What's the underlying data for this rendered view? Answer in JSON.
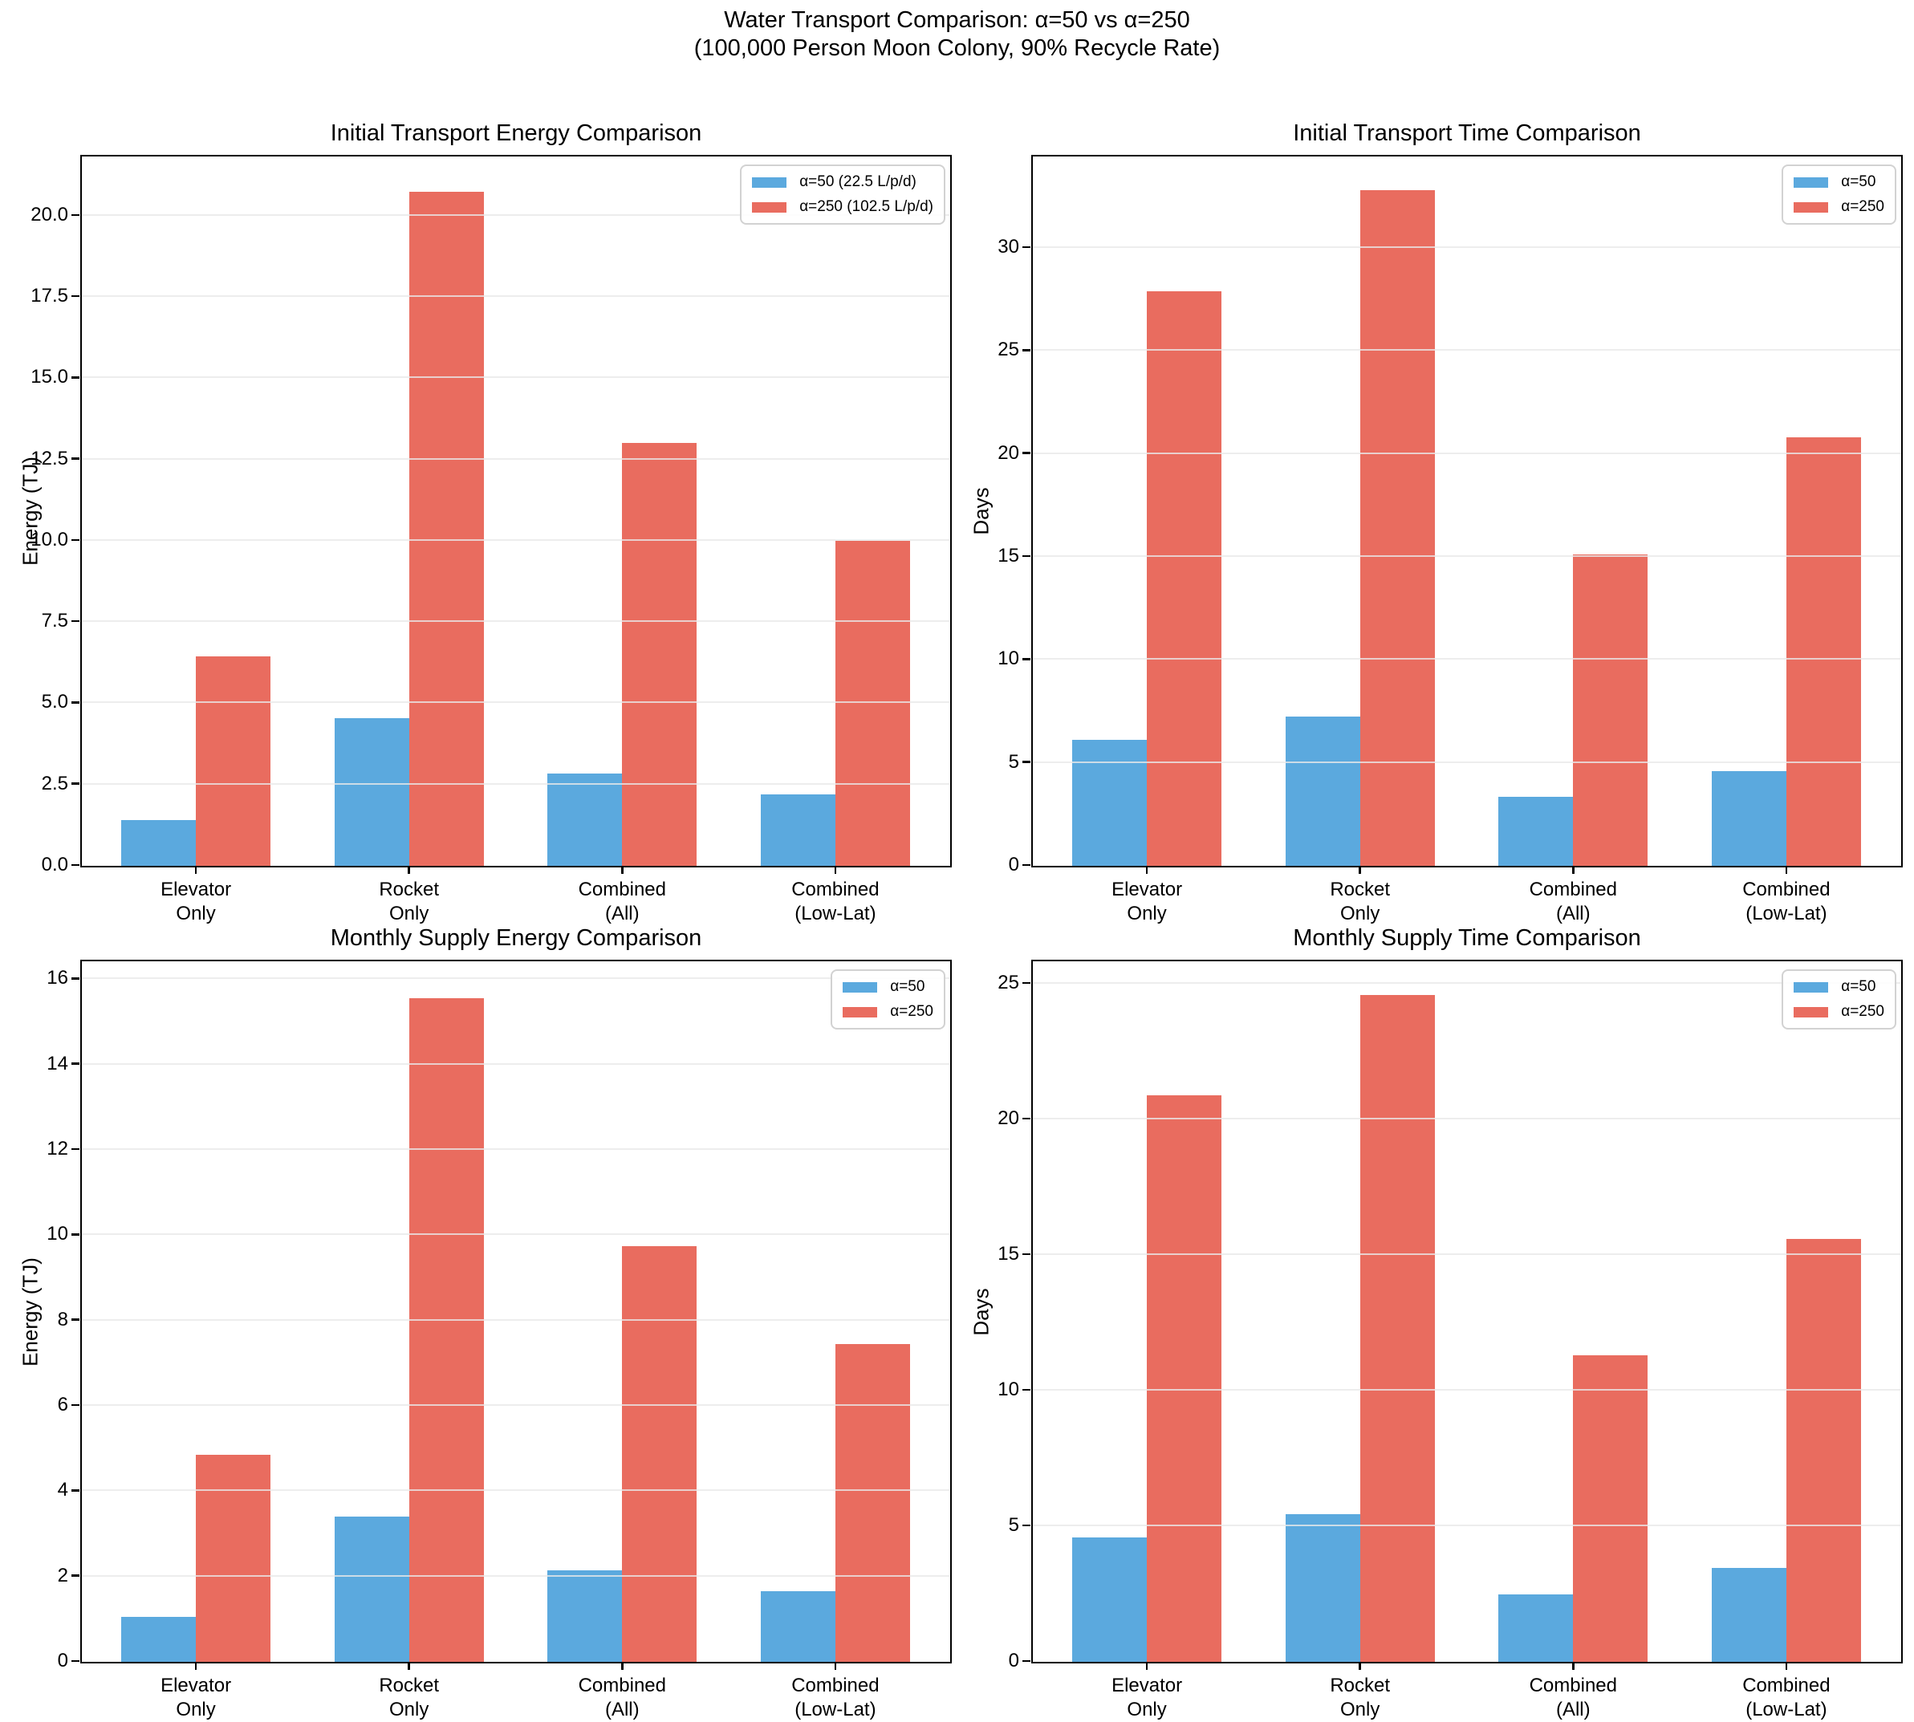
{
  "suptitle": {
    "line1": "Water Transport Comparison: α=50 vs α=250",
    "line2": "(100,000 Person Moon Colony, 90% Recycle Rate)"
  },
  "colors": {
    "alpha50": "#5BA9DE",
    "alpha250": "#E96C5F",
    "grid": "#E8E8E8",
    "spine": "#000000"
  },
  "chart_data": [
    {
      "id": "initial-transport-energy",
      "type": "bar",
      "title": "Initial Transport Energy Comparison",
      "xlabel": "",
      "ylabel": "Energy (TJ)",
      "categories": [
        "Elevator\nOnly",
        "Rocket\nOnly",
        "Combined\n(All)",
        "Combined\n(Low-Lat)"
      ],
      "series": [
        {
          "name": "α=50 (22.5 L/p/d)",
          "color": "#5BA9DE",
          "values": [
            1.4,
            4.55,
            2.85,
            2.2
          ]
        },
        {
          "name": "α=250 (102.5 L/p/d)",
          "color": "#E96C5F",
          "values": [
            6.45,
            20.75,
            13.0,
            10.0
          ]
        }
      ],
      "ylim": [
        0,
        21.8
      ],
      "yticks": [
        0.0,
        2.5,
        5.0,
        7.5,
        10.0,
        12.5,
        15.0,
        17.5,
        20.0
      ],
      "ytick_labels": [
        "0.0",
        "2.5",
        "5.0",
        "7.5",
        "10.0",
        "12.5",
        "15.0",
        "17.5",
        "20.0"
      ],
      "grid": true,
      "legend_position": "upper right"
    },
    {
      "id": "initial-transport-time",
      "type": "bar",
      "title": "Initial Transport Time Comparison",
      "xlabel": "",
      "ylabel": "Days",
      "categories": [
        "Elevator\nOnly",
        "Rocket\nOnly",
        "Combined\n(All)",
        "Combined\n(Low-Lat)"
      ],
      "series": [
        {
          "name": "α=50",
          "color": "#5BA9DE",
          "values": [
            6.1,
            7.25,
            3.35,
            4.6
          ]
        },
        {
          "name": "α=250",
          "color": "#E96C5F",
          "values": [
            27.9,
            32.8,
            15.1,
            20.8
          ]
        }
      ],
      "ylim": [
        0,
        34.4
      ],
      "yticks": [
        0,
        5,
        10,
        15,
        20,
        25,
        30
      ],
      "ytick_labels": [
        "0",
        "5",
        "10",
        "15",
        "20",
        "25",
        "30"
      ],
      "grid": true,
      "legend_position": "upper right"
    },
    {
      "id": "monthly-supply-energy",
      "type": "bar",
      "title": "Monthly Supply Energy Comparison",
      "xlabel": "",
      "ylabel": "Energy (TJ)",
      "categories": [
        "Elevator\nOnly",
        "Rocket\nOnly",
        "Combined\n(All)",
        "Combined\n(Low-Lat)"
      ],
      "series": [
        {
          "name": "α=50",
          "color": "#5BA9DE",
          "values": [
            1.05,
            3.4,
            2.15,
            1.65
          ]
        },
        {
          "name": "α=250",
          "color": "#E96C5F",
          "values": [
            4.85,
            15.55,
            9.75,
            7.45
          ]
        }
      ],
      "ylim": [
        0,
        16.4
      ],
      "yticks": [
        0,
        2,
        4,
        6,
        8,
        10,
        12,
        14,
        16
      ],
      "ytick_labels": [
        "0",
        "2",
        "4",
        "6",
        "8",
        "10",
        "12",
        "14",
        "16"
      ],
      "grid": true,
      "legend_position": "upper right"
    },
    {
      "id": "monthly-supply-time",
      "type": "bar",
      "title": "Monthly Supply Time Comparison",
      "xlabel": "",
      "ylabel": "Days",
      "categories": [
        "Elevator\nOnly",
        "Rocket\nOnly",
        "Combined\n(All)",
        "Combined\n(Low-Lat)"
      ],
      "series": [
        {
          "name": "α=50",
          "color": "#5BA9DE",
          "values": [
            4.6,
            5.45,
            2.5,
            3.45
          ]
        },
        {
          "name": "α=250",
          "color": "#E96C5F",
          "values": [
            20.9,
            24.6,
            11.3,
            15.6
          ]
        }
      ],
      "ylim": [
        0,
        25.8
      ],
      "yticks": [
        0,
        5,
        10,
        15,
        20,
        25
      ],
      "ytick_labels": [
        "0",
        "5",
        "10",
        "15",
        "20",
        "25"
      ],
      "grid": true,
      "legend_position": "upper right"
    }
  ]
}
